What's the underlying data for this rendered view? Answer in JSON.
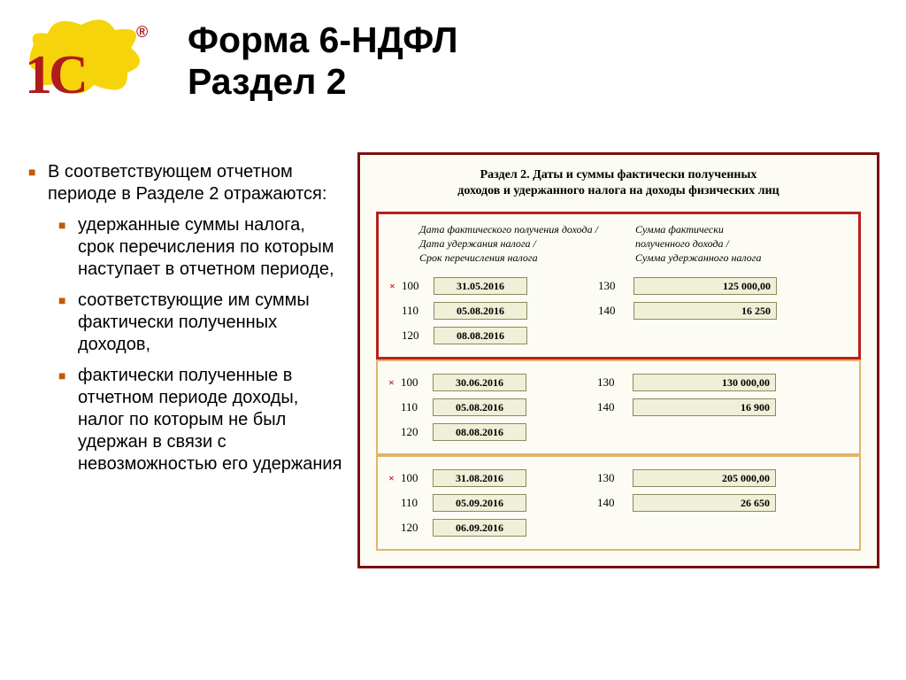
{
  "logo": {
    "text": "1С",
    "reg": "®"
  },
  "title_line1": "Форма 6-НДФЛ",
  "title_line2": "Раздел 2",
  "intro": "В соответствующем отчетном периоде в Разделе 2 отражаются:",
  "bullets": [
    "удержанные суммы налога, срок перечисления по которым наступает в отчетном периоде,",
    "соответствующие им суммы фактически полученных доходов,",
    "фактически полученные в отчетном периоде доходы, налог по которым не был удержан в связи с невозможностью его удержания"
  ],
  "panel": {
    "section_title_l1": "Раздел 2.  Даты и суммы фактически полученных",
    "section_title_l2": "доходов и удержанного налога на доходы физических лиц",
    "header_left_l1": "Дата фактического получения дохода /",
    "header_left_l2": "Дата удержания налога /",
    "header_left_l3": "Срок перечисления налога",
    "header_right_l1": "Сумма фактически",
    "header_right_l2": "полученного дохода /",
    "header_right_l3": "Сумма удержанного налога",
    "blocks": [
      {
        "highlight": true,
        "rows": [
          {
            "x": "×",
            "cl": "100",
            "date": "31.05.2016",
            "cr": "130",
            "val": "125 000,00"
          },
          {
            "x": "",
            "cl": "110",
            "date": "05.08.2016",
            "cr": "140",
            "val": "16 250"
          },
          {
            "x": "",
            "cl": "120",
            "date": "08.08.2016",
            "cr": "",
            "val": ""
          }
        ]
      },
      {
        "highlight": false,
        "rows": [
          {
            "x": "×",
            "cl": "100",
            "date": "30.06.2016",
            "cr": "130",
            "val": "130 000,00"
          },
          {
            "x": "",
            "cl": "110",
            "date": "05.08.2016",
            "cr": "140",
            "val": "16 900"
          },
          {
            "x": "",
            "cl": "120",
            "date": "08.08.2016",
            "cr": "",
            "val": ""
          }
        ]
      },
      {
        "highlight": false,
        "rows": [
          {
            "x": "×",
            "cl": "100",
            "date": "31.08.2016",
            "cr": "130",
            "val": "205 000,00"
          },
          {
            "x": "",
            "cl": "110",
            "date": "05.09.2016",
            "cr": "140",
            "val": "26 650"
          },
          {
            "x": "",
            "cl": "120",
            "date": "06.09.2016",
            "cr": "",
            "val": ""
          }
        ]
      }
    ]
  },
  "colors": {
    "bullet_mark": "#c25a00",
    "panel_border": "#7a1111",
    "block_border": "#e3b36b",
    "highlight_border": "#b82020",
    "field_bg": "#f0f0d8",
    "field_border": "#8a8a60",
    "logo_yellow": "#f6d40c",
    "logo_red": "#b01b1b"
  }
}
